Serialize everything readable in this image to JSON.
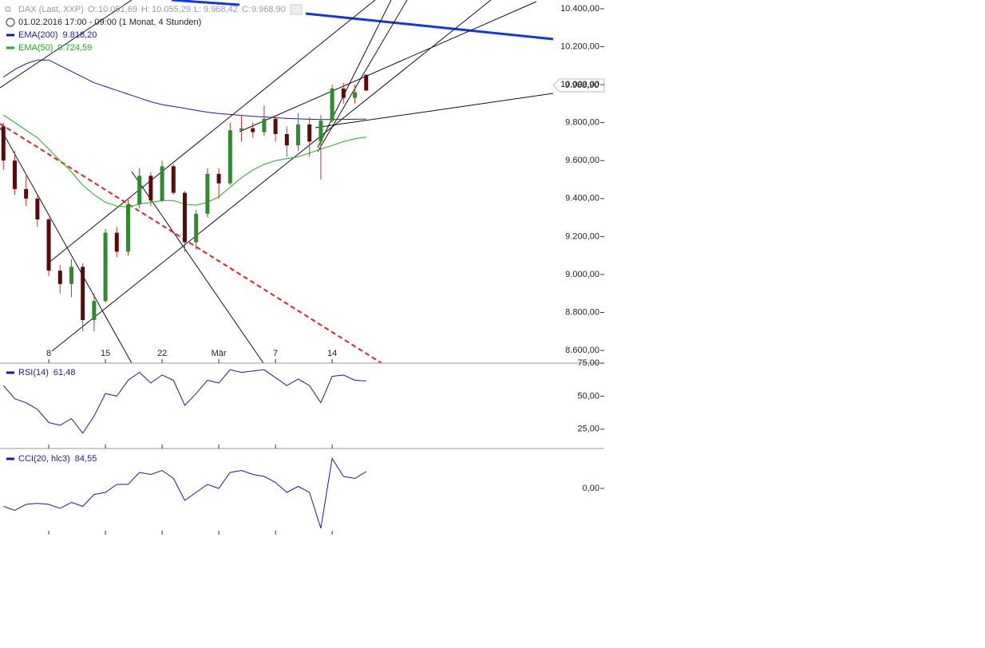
{
  "chart_data": [
    {
      "type": "candlestick",
      "instrument": "DAX (Last, XXP)",
      "period": "01.02.2016 17:00 - 09:00 (1 Monat, 4 Stunden)",
      "ohlc_labels": {
        "open_name": "O:",
        "open": "10.051,69",
        "high_name": "H:",
        "high": "10.055,29",
        "low_name": "L:",
        "low": "9.968,42",
        "close_name": "C:",
        "close": "9.968,90"
      },
      "x": [
        1,
        2,
        3,
        4,
        5,
        6,
        7,
        8,
        9,
        10,
        11,
        12,
        13,
        14,
        15,
        16,
        17,
        18,
        19,
        20,
        21,
        22,
        23,
        24,
        25,
        26,
        27,
        28,
        29,
        30,
        31,
        32,
        33
      ],
      "open": [
        9780,
        9600,
        9450,
        9400,
        9290,
        9020,
        8950,
        9040,
        8760,
        8860,
        9220,
        9120,
        9370,
        9520,
        9390,
        9570,
        9430,
        9170,
        9320,
        9530,
        9480,
        9760,
        9770,
        9750,
        9820,
        9740,
        9680,
        9790,
        9700,
        9810,
        9980,
        9930,
        10051.69
      ],
      "high": [
        9800,
        9650,
        9520,
        9420,
        9300,
        9050,
        9080,
        9060,
        8900,
        9240,
        9250,
        9400,
        9560,
        9540,
        9600,
        9580,
        9440,
        9340,
        9560,
        9560,
        9800,
        9840,
        9800,
        9890,
        9840,
        9780,
        9850,
        9830,
        9840,
        10000,
        10010,
        10000,
        10055.29
      ],
      "low": [
        9550,
        9420,
        9360,
        9250,
        8990,
        8900,
        8880,
        8700,
        8700,
        8850,
        9090,
        9100,
        9350,
        9360,
        9380,
        9420,
        9120,
        9130,
        9300,
        9400,
        9470,
        9700,
        9720,
        9730,
        9700,
        9620,
        9650,
        9620,
        9500,
        9800,
        9900,
        9900,
        9968.42
      ],
      "close": [
        9600,
        9450,
        9400,
        9290,
        9020,
        8950,
        9040,
        8760,
        8860,
        9220,
        9120,
        9370,
        9520,
        9390,
        9570,
        9430,
        9170,
        9320,
        9530,
        9480,
        9760,
        9770,
        9750,
        9820,
        9740,
        9680,
        9790,
        9700,
        9810,
        9980,
        9930,
        9960,
        9968.9
      ],
      "up_color": "#2e8b2e",
      "down_color": "#5a0a0a",
      "wick_color": "#c0392b",
      "series": [
        {
          "name": "EMA(200)",
          "color": "#1a1aa0",
          "value_label": "9.818,20",
          "values": [
            10040,
            10080,
            10110,
            10130,
            10130,
            10100,
            10070,
            10040,
            10010,
            9990,
            9970,
            9950,
            9930,
            9910,
            9895,
            9885,
            9875,
            9865,
            9855,
            9848,
            9843,
            9838,
            9833,
            9830,
            9826,
            9822,
            9820,
            9818,
            9816,
            9816,
            9817,
            9818,
            9818.2
          ]
        },
        {
          "name": "EMA(50)",
          "color": "#22aa22",
          "value_label": "9.724,59",
          "values": [
            9840,
            9800,
            9760,
            9720,
            9660,
            9600,
            9540,
            9470,
            9420,
            9380,
            9360,
            9355,
            9370,
            9380,
            9390,
            9390,
            9370,
            9365,
            9380,
            9410,
            9460,
            9510,
            9550,
            9580,
            9600,
            9610,
            9620,
            9640,
            9660,
            9680,
            9700,
            9715,
            9724.59
          ]
        }
      ],
      "xlim": [
        0.7,
        54
      ],
      "xticks": [
        {
          "value": 5,
          "label": "8"
        },
        {
          "value": 10,
          "label": "15"
        },
        {
          "value": 15,
          "label": "22"
        },
        {
          "value": 20,
          "label": "Mär"
        },
        {
          "value": 25,
          "label": "7"
        },
        {
          "value": 30,
          "label": "14"
        }
      ],
      "ylim": [
        8533,
        10446
      ],
      "yticks": [
        {
          "value": 8600,
          "label": "8.600,00"
        },
        {
          "value": 8800,
          "label": "8.800,00"
        },
        {
          "value": 9000,
          "label": "9.000,00"
        },
        {
          "value": 9200,
          "label": "9.200,00"
        },
        {
          "value": 9400,
          "label": "9.400,00"
        },
        {
          "value": 9600,
          "label": "9.600,00"
        },
        {
          "value": 9800,
          "label": "9.800,00"
        },
        {
          "value": 10000,
          "label": "10.000,00"
        },
        {
          "value": 10200,
          "label": "10.200,00"
        },
        {
          "value": 10400,
          "label": "10.400,00"
        }
      ]
    },
    {
      "type": "line",
      "x": [
        1,
        2,
        3,
        4,
        5,
        6,
        7,
        8,
        9,
        10,
        11,
        12,
        13,
        14,
        15,
        16,
        17,
        18,
        19,
        20,
        21,
        22,
        23,
        24,
        25,
        26,
        27,
        28,
        29,
        30,
        31,
        32,
        33
      ],
      "series": [
        {
          "name": "RSI(14)",
          "color": "#1a1aa0",
          "value_label": "61,48",
          "values": [
            58,
            48,
            45,
            40,
            30,
            28,
            33,
            22,
            35,
            52,
            50,
            62,
            68,
            60,
            66,
            62,
            43,
            52,
            62,
            60,
            70,
            68,
            69,
            70,
            64,
            58,
            63,
            58,
            45,
            65,
            66,
            62,
            61.48
          ]
        }
      ],
      "xlim": [
        0.7,
        54
      ],
      "ylim": [
        10.4,
        74.4
      ],
      "yticks": [
        {
          "value": 25,
          "label": "25,00"
        },
        {
          "value": 50,
          "label": "50,00"
        },
        {
          "value": 75,
          "label": "75,00"
        }
      ]
    },
    {
      "type": "line",
      "x": [
        1,
        2,
        3,
        4,
        5,
        6,
        7,
        8,
        9,
        10,
        11,
        12,
        13,
        14,
        15,
        16,
        17,
        18,
        19,
        20,
        21,
        22,
        23,
        24,
        25,
        26,
        27,
        28,
        29,
        30,
        31,
        32,
        33
      ],
      "series": [
        {
          "name": "CCI(20, hlc3)",
          "color": "#1a1aa0",
          "value_label": "84,55",
          "values": [
            -90,
            -110,
            -80,
            -75,
            -80,
            -100,
            -70,
            -90,
            -30,
            -20,
            20,
            20,
            80,
            70,
            90,
            50,
            -60,
            -20,
            20,
            0,
            80,
            90,
            70,
            60,
            30,
            -20,
            10,
            -20,
            -200,
            150,
            60,
            50,
            84.55
          ]
        }
      ],
      "xlim": [
        0.7,
        54
      ],
      "ylim": [
        -232,
        196
      ],
      "yticks": [
        {
          "value": 0,
          "label": "0,00"
        }
      ]
    }
  ]
}
